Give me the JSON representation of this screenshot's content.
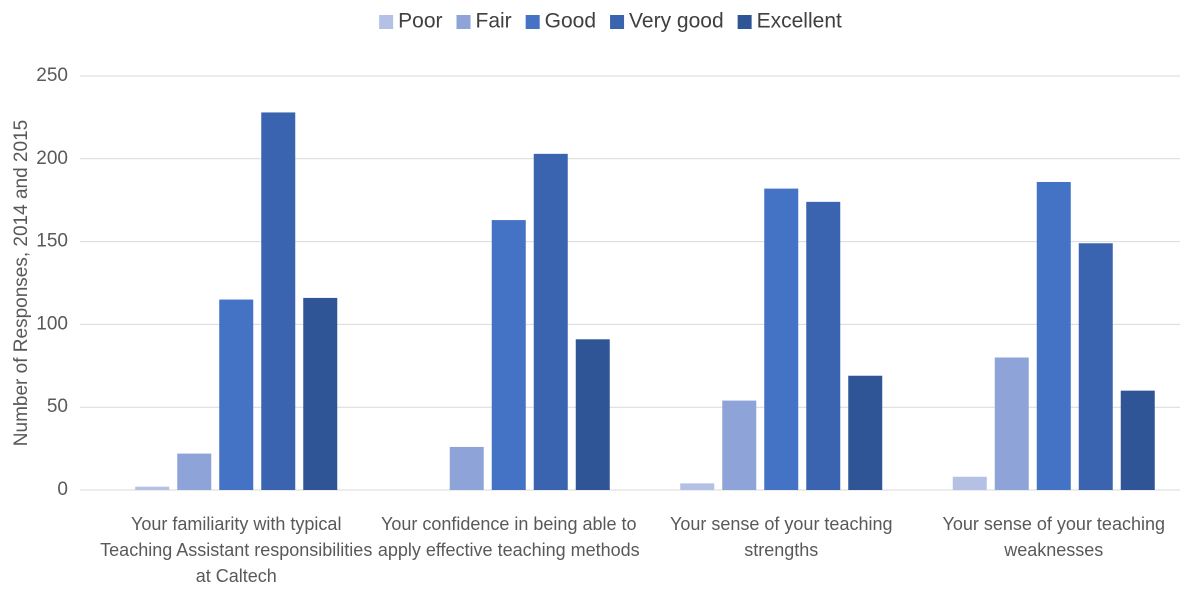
{
  "chart_data": {
    "type": "bar",
    "categories": [
      "Your familiarity with typical Teaching Assistant responsibilities at Caltech",
      "Your confidence in being able to apply effective teaching methods",
      "Your sense of your teaching strengths",
      "Your sense of your teaching weaknesses"
    ],
    "series": [
      {
        "name": "Poor",
        "color": "#b4c1e5",
        "values": [
          2,
          0,
          4,
          8
        ]
      },
      {
        "name": "Fair",
        "color": "#8ea3d7",
        "values": [
          22,
          26,
          54,
          80
        ]
      },
      {
        "name": "Good",
        "color": "#4472c4",
        "values": [
          115,
          163,
          182,
          186
        ]
      },
      {
        "name": "Very good",
        "color": "#3a64b0",
        "values": [
          228,
          203,
          174,
          149
        ]
      },
      {
        "name": "Excellent",
        "color": "#2f5597",
        "values": [
          116,
          91,
          69,
          60
        ]
      }
    ],
    "y_label": "Number of Responses, 2014 and 2015",
    "ylim": [
      0,
      250
    ],
    "yticks": [
      0,
      50,
      100,
      150,
      200,
      250
    ],
    "grid": true,
    "legend": "top"
  }
}
